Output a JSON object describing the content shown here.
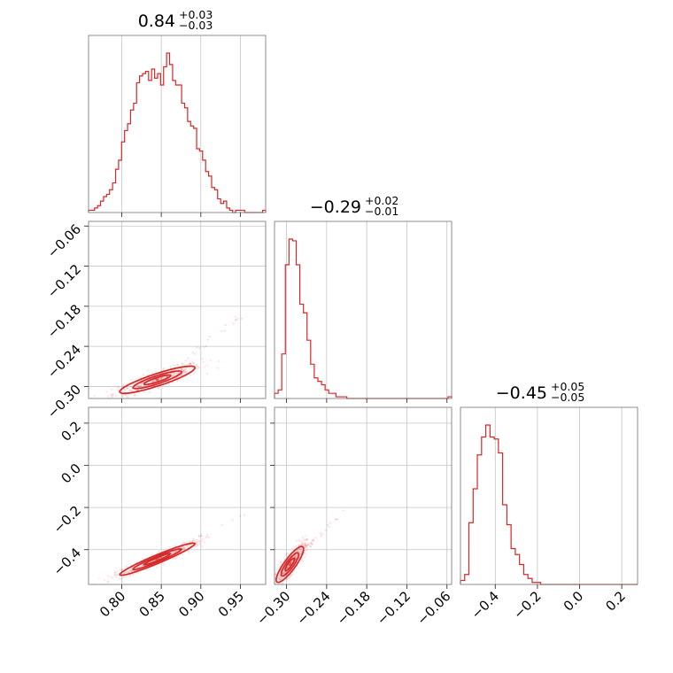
{
  "chart_data": {
    "type": "corner",
    "color": "#d62728",
    "parameters": [
      {
        "title_value": "0.84",
        "title_plus": "+0.03",
        "title_minus": "−0.03",
        "range": [
          0.758,
          0.982
        ],
        "ticks": [
          0.8,
          0.85,
          0.9,
          0.95
        ],
        "tick_labels": [
          "0.80",
          "0.85",
          "0.90",
          "0.95"
        ],
        "hist_range": [
          0.758,
          0.982
        ],
        "hist": [
          1,
          1,
          2,
          3,
          5,
          7,
          8,
          10,
          13,
          19,
          23,
          31,
          36,
          39,
          45,
          48,
          57,
          60,
          61,
          62,
          58,
          63,
          59,
          61,
          56,
          64,
          70,
          65,
          58,
          56,
          56,
          48,
          46,
          40,
          38,
          37,
          28,
          27,
          23,
          18,
          16,
          11,
          10,
          6,
          4,
          5,
          2,
          1,
          0,
          1,
          1,
          1,
          0,
          0,
          0,
          0,
          0,
          0,
          1
        ]
      },
      {
        "title_value": "−0.29",
        "title_plus": "+0.02",
        "title_minus": "−0.01",
        "range": [
          -0.318,
          -0.053
        ],
        "ticks": [
          -0.3,
          -0.24,
          -0.18,
          -0.12,
          -0.06
        ],
        "tick_labels": [
          "−0.30",
          "−0.24",
          "−0.18",
          "−0.12",
          "−0.06"
        ],
        "hist_range": [
          -0.318,
          -0.053
        ],
        "hist": [
          3,
          5,
          26,
          78,
          93,
          92,
          78,
          55,
          50,
          34,
          20,
          12,
          10,
          8,
          5,
          3,
          3,
          1,
          1,
          1,
          0,
          0,
          0,
          0,
          0,
          0,
          0,
          0,
          0,
          0,
          0,
          0,
          0,
          0,
          0,
          0,
          0,
          0,
          0,
          0,
          0,
          0,
          0,
          0,
          0,
          0,
          0,
          0,
          1
        ]
      },
      {
        "title_value": "−0.45",
        "title_plus": "+0.05",
        "title_minus": "−0.05",
        "range": [
          -0.565,
          0.275
        ],
        "ticks": [
          -0.4,
          -0.2,
          0.0,
          0.2
        ],
        "tick_labels": [
          "−0.4",
          "−0.2",
          "0.0",
          "0.2"
        ],
        "tick_labels_y": [
          "−0.4",
          "−0.2",
          "0.0",
          "0.2"
        ],
        "hist_range": [
          -0.565,
          0.275
        ],
        "hist": [
          2,
          5,
          31,
          48,
          65,
          74,
          80,
          74,
          73,
          66,
          40,
          30,
          18,
          15,
          10,
          5,
          3,
          1,
          1,
          0,
          0,
          0,
          0,
          0,
          0,
          0,
          0,
          0,
          0,
          0,
          0,
          0,
          0,
          0,
          0,
          0,
          0,
          0,
          0,
          0,
          0,
          0
        ]
      }
    ],
    "pairs": [
      {
        "x_param": 0,
        "y_param": 1,
        "center": [
          0.845,
          -0.29
        ],
        "spread": [
          0.028,
          0.012
        ],
        "corr": 0.88,
        "tail": [
          0.95,
          -0.195
        ]
      },
      {
        "x_param": 0,
        "y_param": 2,
        "center": [
          0.845,
          -0.445
        ],
        "spread": [
          0.028,
          0.045
        ],
        "corr": 0.96,
        "tail": [
          0.955,
          -0.23
        ]
      },
      {
        "x_param": 1,
        "y_param": 2,
        "center": [
          -0.295,
          -0.47
        ],
        "spread": [
          0.012,
          0.05
        ],
        "corr": 0.86,
        "tail": [
          -0.215,
          -0.22
        ]
      }
    ],
    "grid": true
  }
}
